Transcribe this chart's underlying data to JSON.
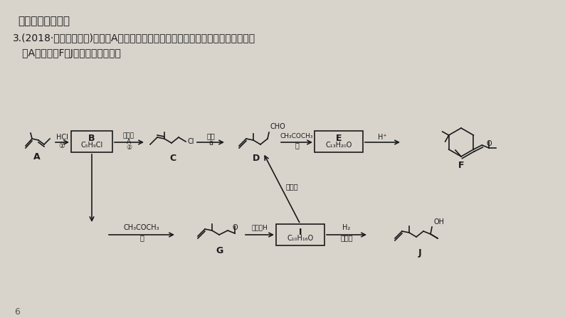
{
  "bg_color": "#d8d4cc",
  "title1": "考点三：加聚反应",
  "title2": "3.(2018·浙江湖州二中)化合物A是一种重要的化工原料，常用于合成橡胶、香料等。",
  "title3": "   用A合成香料F和J的合成路线如下：",
  "page_num": "6",
  "font_color": "#1a1a1a",
  "box_color": "#1a1a1a",
  "arrow_color": "#1a1a1a"
}
